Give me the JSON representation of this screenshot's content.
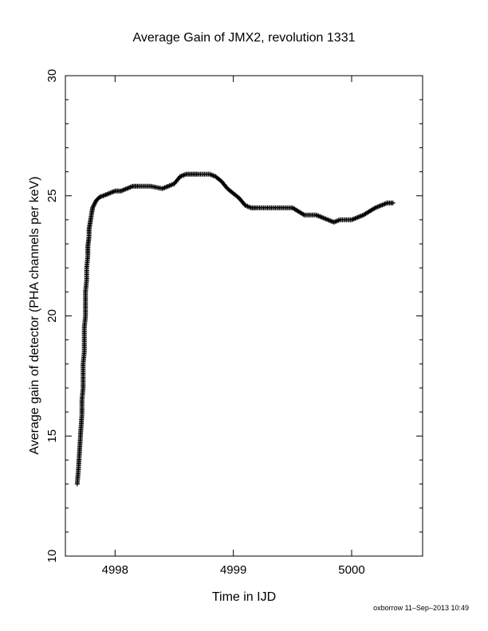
{
  "footer": "oxborrow 11–Sep–2013 10:49",
  "chart_data": {
    "type": "scatter",
    "marker": "plus",
    "title": "Average Gain of JMX2, revolution 1331",
    "xlabel": "Time in IJD",
    "ylabel": "Average gain of detector (PHA channels per keV)",
    "xlim": [
      4997.58,
      5000.6
    ],
    "ylim": [
      10,
      30
    ],
    "xticks": [
      4998,
      4999,
      5000
    ],
    "yticks": [
      10,
      15,
      20,
      25,
      30
    ],
    "grid": false,
    "color": "#000000",
    "x": [
      4997.68,
      4997.69,
      4997.7,
      4997.71,
      4997.72,
      4997.72,
      4997.73,
      4997.73,
      4997.73,
      4997.74,
      4997.74,
      4997.74,
      4997.75,
      4997.75,
      4997.75,
      4997.76,
      4997.76,
      4997.77,
      4997.77,
      4997.78,
      4997.78,
      4997.79,
      4997.8,
      4997.81,
      4997.82,
      4997.84,
      4997.87,
      4997.9,
      4997.95,
      4998.0,
      4998.05,
      4998.1,
      4998.15,
      4998.2,
      4998.3,
      4998.4,
      4998.5,
      4998.55,
      4998.6,
      4998.65,
      4998.7,
      4998.8,
      4998.85,
      4998.9,
      4998.95,
      4999.0,
      4999.05,
      4999.1,
      4999.15,
      4999.2,
      4999.3,
      4999.4,
      4999.5,
      4999.6,
      4999.7,
      4999.8,
      4999.85,
      4999.9,
      5000.0,
      5000.1,
      5000.2,
      5000.3,
      5000.35
    ],
    "y": [
      13.0,
      13.6,
      14.4,
      15.2,
      15.9,
      16.5,
      17.0,
      17.5,
      18.0,
      18.5,
      19.0,
      19.5,
      20.0,
      20.5,
      21.0,
      21.5,
      22.0,
      22.5,
      22.9,
      23.3,
      23.6,
      23.9,
      24.2,
      24.5,
      24.6,
      24.8,
      24.95,
      25.0,
      25.1,
      25.2,
      25.2,
      25.3,
      25.4,
      25.4,
      25.4,
      25.3,
      25.5,
      25.8,
      25.9,
      25.9,
      25.9,
      25.9,
      25.8,
      25.6,
      25.3,
      25.1,
      24.9,
      24.6,
      24.5,
      24.5,
      24.5,
      24.5,
      24.5,
      24.2,
      24.2,
      24.0,
      23.9,
      24.0,
      24.0,
      24.2,
      24.5,
      24.7,
      24.7
    ]
  }
}
